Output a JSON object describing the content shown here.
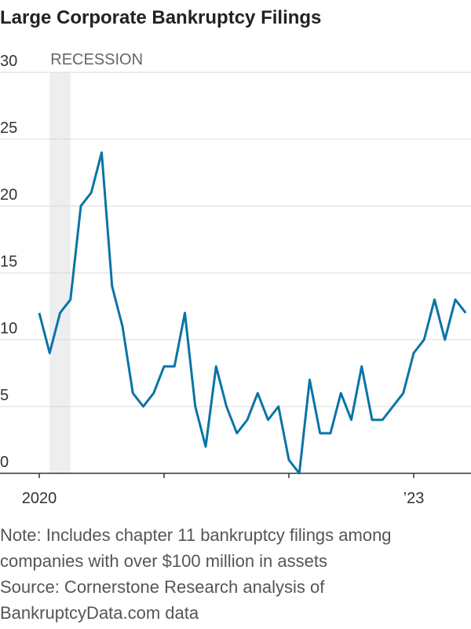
{
  "chart_data": {
    "type": "line",
    "title": "Large Corporate Bankruptcy Filings",
    "categories": [
      "2020",
      null,
      null,
      null,
      null,
      null,
      null,
      null,
      null,
      null,
      null,
      null,
      null,
      null,
      null,
      null,
      null,
      null,
      null,
      null,
      null,
      null,
      null,
      null,
      null,
      null,
      null,
      null,
      null,
      null,
      null,
      null,
      null,
      null,
      null,
      null,
      "’23",
      null,
      null,
      null,
      null,
      null
    ],
    "series": [
      {
        "name": "Large corporate bankruptcy filings",
        "color": "#0a74a6",
        "values": [
          12,
          9,
          12,
          13,
          20,
          21,
          24,
          14,
          11,
          6,
          5,
          6,
          8,
          8,
          12,
          5,
          2,
          8,
          5,
          3,
          4,
          6,
          4,
          5,
          1,
          0,
          7,
          3,
          3,
          6,
          4,
          8,
          4,
          4,
          5,
          6,
          9,
          10,
          13,
          10,
          13,
          12
        ]
      }
    ],
    "xticks": [
      0,
      12,
      24,
      36
    ],
    "ylim": [
      0,
      30
    ],
    "yticks": [
      0,
      5,
      10,
      15,
      20,
      25,
      30
    ],
    "grid": true,
    "recession": {
      "label": "RECESSION",
      "start": 1,
      "end": 3
    },
    "note": "Note: Includes chapter 11 bankruptcy filings among companies with over $100 million in assets",
    "source": "Source: Cornerstone Research analysis of BankruptcyData.com data"
  }
}
